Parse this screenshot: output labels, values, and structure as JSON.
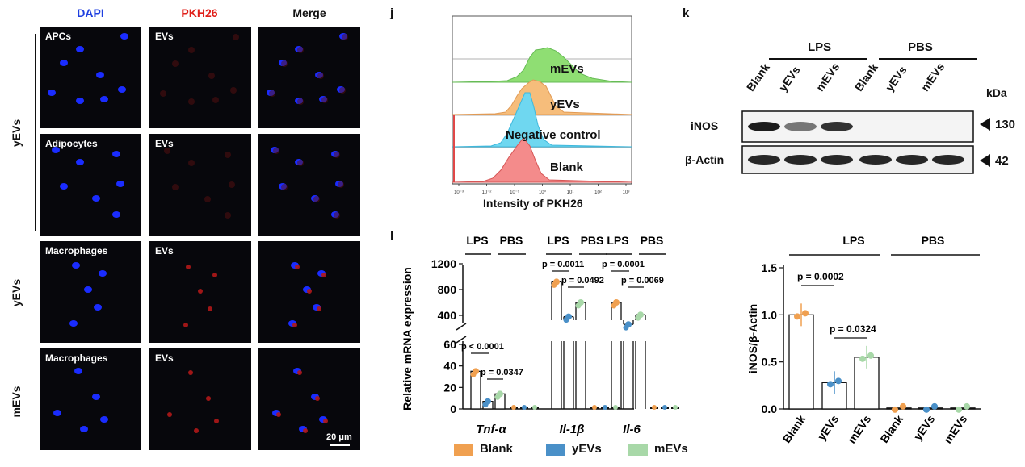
{
  "panel_left": {
    "column_headers": [
      "DAPI",
      "PKH26",
      "Merge"
    ],
    "column_colors": [
      "#1f3fe0",
      "#e0201a",
      "#111111"
    ],
    "group_labels": [
      "yEVs",
      "yEVs",
      "mEVs"
    ],
    "tile_labels": [
      [
        "APCs",
        "EVs",
        ""
      ],
      [
        "Adipocytes",
        "EVs",
        ""
      ],
      [
        "Macrophages",
        "EVs",
        ""
      ],
      [
        "Macrophages",
        "EVs",
        ""
      ]
    ],
    "scale_bar": "20 μm"
  },
  "panel_j": {
    "letter": "j",
    "xlabel": "Intensity of PKH26",
    "tick_labels": [
      "10⁻³",
      "10⁻²",
      "10⁻¹",
      "10⁰",
      "10¹",
      "10²",
      "10³"
    ],
    "series": [
      {
        "name": "mEVs",
        "color": "#86d66a"
      },
      {
        "name": "yEVs",
        "color": "#f3b46b"
      },
      {
        "name": "Negative control",
        "color": "#5fd0ec"
      },
      {
        "name": "Blank",
        "color": "#f07a7a"
      }
    ]
  },
  "panel_k": {
    "letter": "k",
    "group_labels": [
      "LPS",
      "PBS"
    ],
    "lane_labels": [
      "Blank",
      "yEVs",
      "mEVs",
      "Blank",
      "yEVs",
      "mEVs"
    ],
    "unit_label": "kDa",
    "rows": [
      {
        "name": "iNOS",
        "kda": "130"
      },
      {
        "name": "β-Actin",
        "kda": "42"
      }
    ]
  },
  "panel_l": {
    "letter": "l",
    "ylabel": "Relative mRNA expression",
    "group_labels": [
      "LPS",
      "PBS"
    ],
    "genes": [
      "Tnf-α",
      "Il-1β",
      "Il-6"
    ],
    "upper_ticks": [
      "1200",
      "800",
      "400"
    ],
    "lower_ticks": [
      "60",
      "40",
      "20",
      "0"
    ],
    "pvalues": [
      [
        "p < 0.0001",
        "p = 0.0347"
      ],
      [
        "p = 0.0011",
        "p = 0.0492"
      ],
      [
        "p = 0.0001",
        "p = 0.0069"
      ]
    ],
    "legend": [
      "Blank",
      "yEVs",
      "mEVs"
    ],
    "legend_colors": [
      "#f0a050",
      "#4a90c8",
      "#a8d8a8"
    ]
  },
  "panel_right": {
    "group_labels": [
      "LPS",
      "PBS"
    ],
    "ylabel": "iNOS/β-Actin",
    "ticks": [
      "1.5",
      "1.0",
      "0.5",
      "0.0"
    ],
    "categories": [
      "Blank",
      "yEVs",
      "mEVs",
      "Blank",
      "yEVs",
      "mEVs"
    ],
    "pvalues": [
      "p = 0.0002",
      "p = 0.0324"
    ]
  },
  "chart_data": [
    {
      "type": "bar",
      "title": "",
      "xlabel": "",
      "ylabel": "Relative mRNA expression",
      "categories": [
        "Tnf-α",
        "Il-1β",
        "Il-6"
      ],
      "series": [
        {
          "name": "Blank",
          "values": [
            35,
            920,
            600
          ]
        },
        {
          "name": "yEVs",
          "values": [
            7,
            380,
            260
          ]
        },
        {
          "name": "mEVs",
          "values": [
            14,
            600,
            410
          ]
        }
      ]
    },
    {
      "type": "bar",
      "title": "",
      "xlabel": "",
      "ylabel": "iNOS/β-Actin",
      "categories": [
        "Blank",
        "yEVs",
        "mEVs",
        "Blank",
        "yEVs",
        "mEVs"
      ],
      "values": [
        1.0,
        0.28,
        0.55,
        0.01,
        0.01,
        0.01
      ],
      "ylim": [
        0,
        1.5
      ]
    }
  ]
}
